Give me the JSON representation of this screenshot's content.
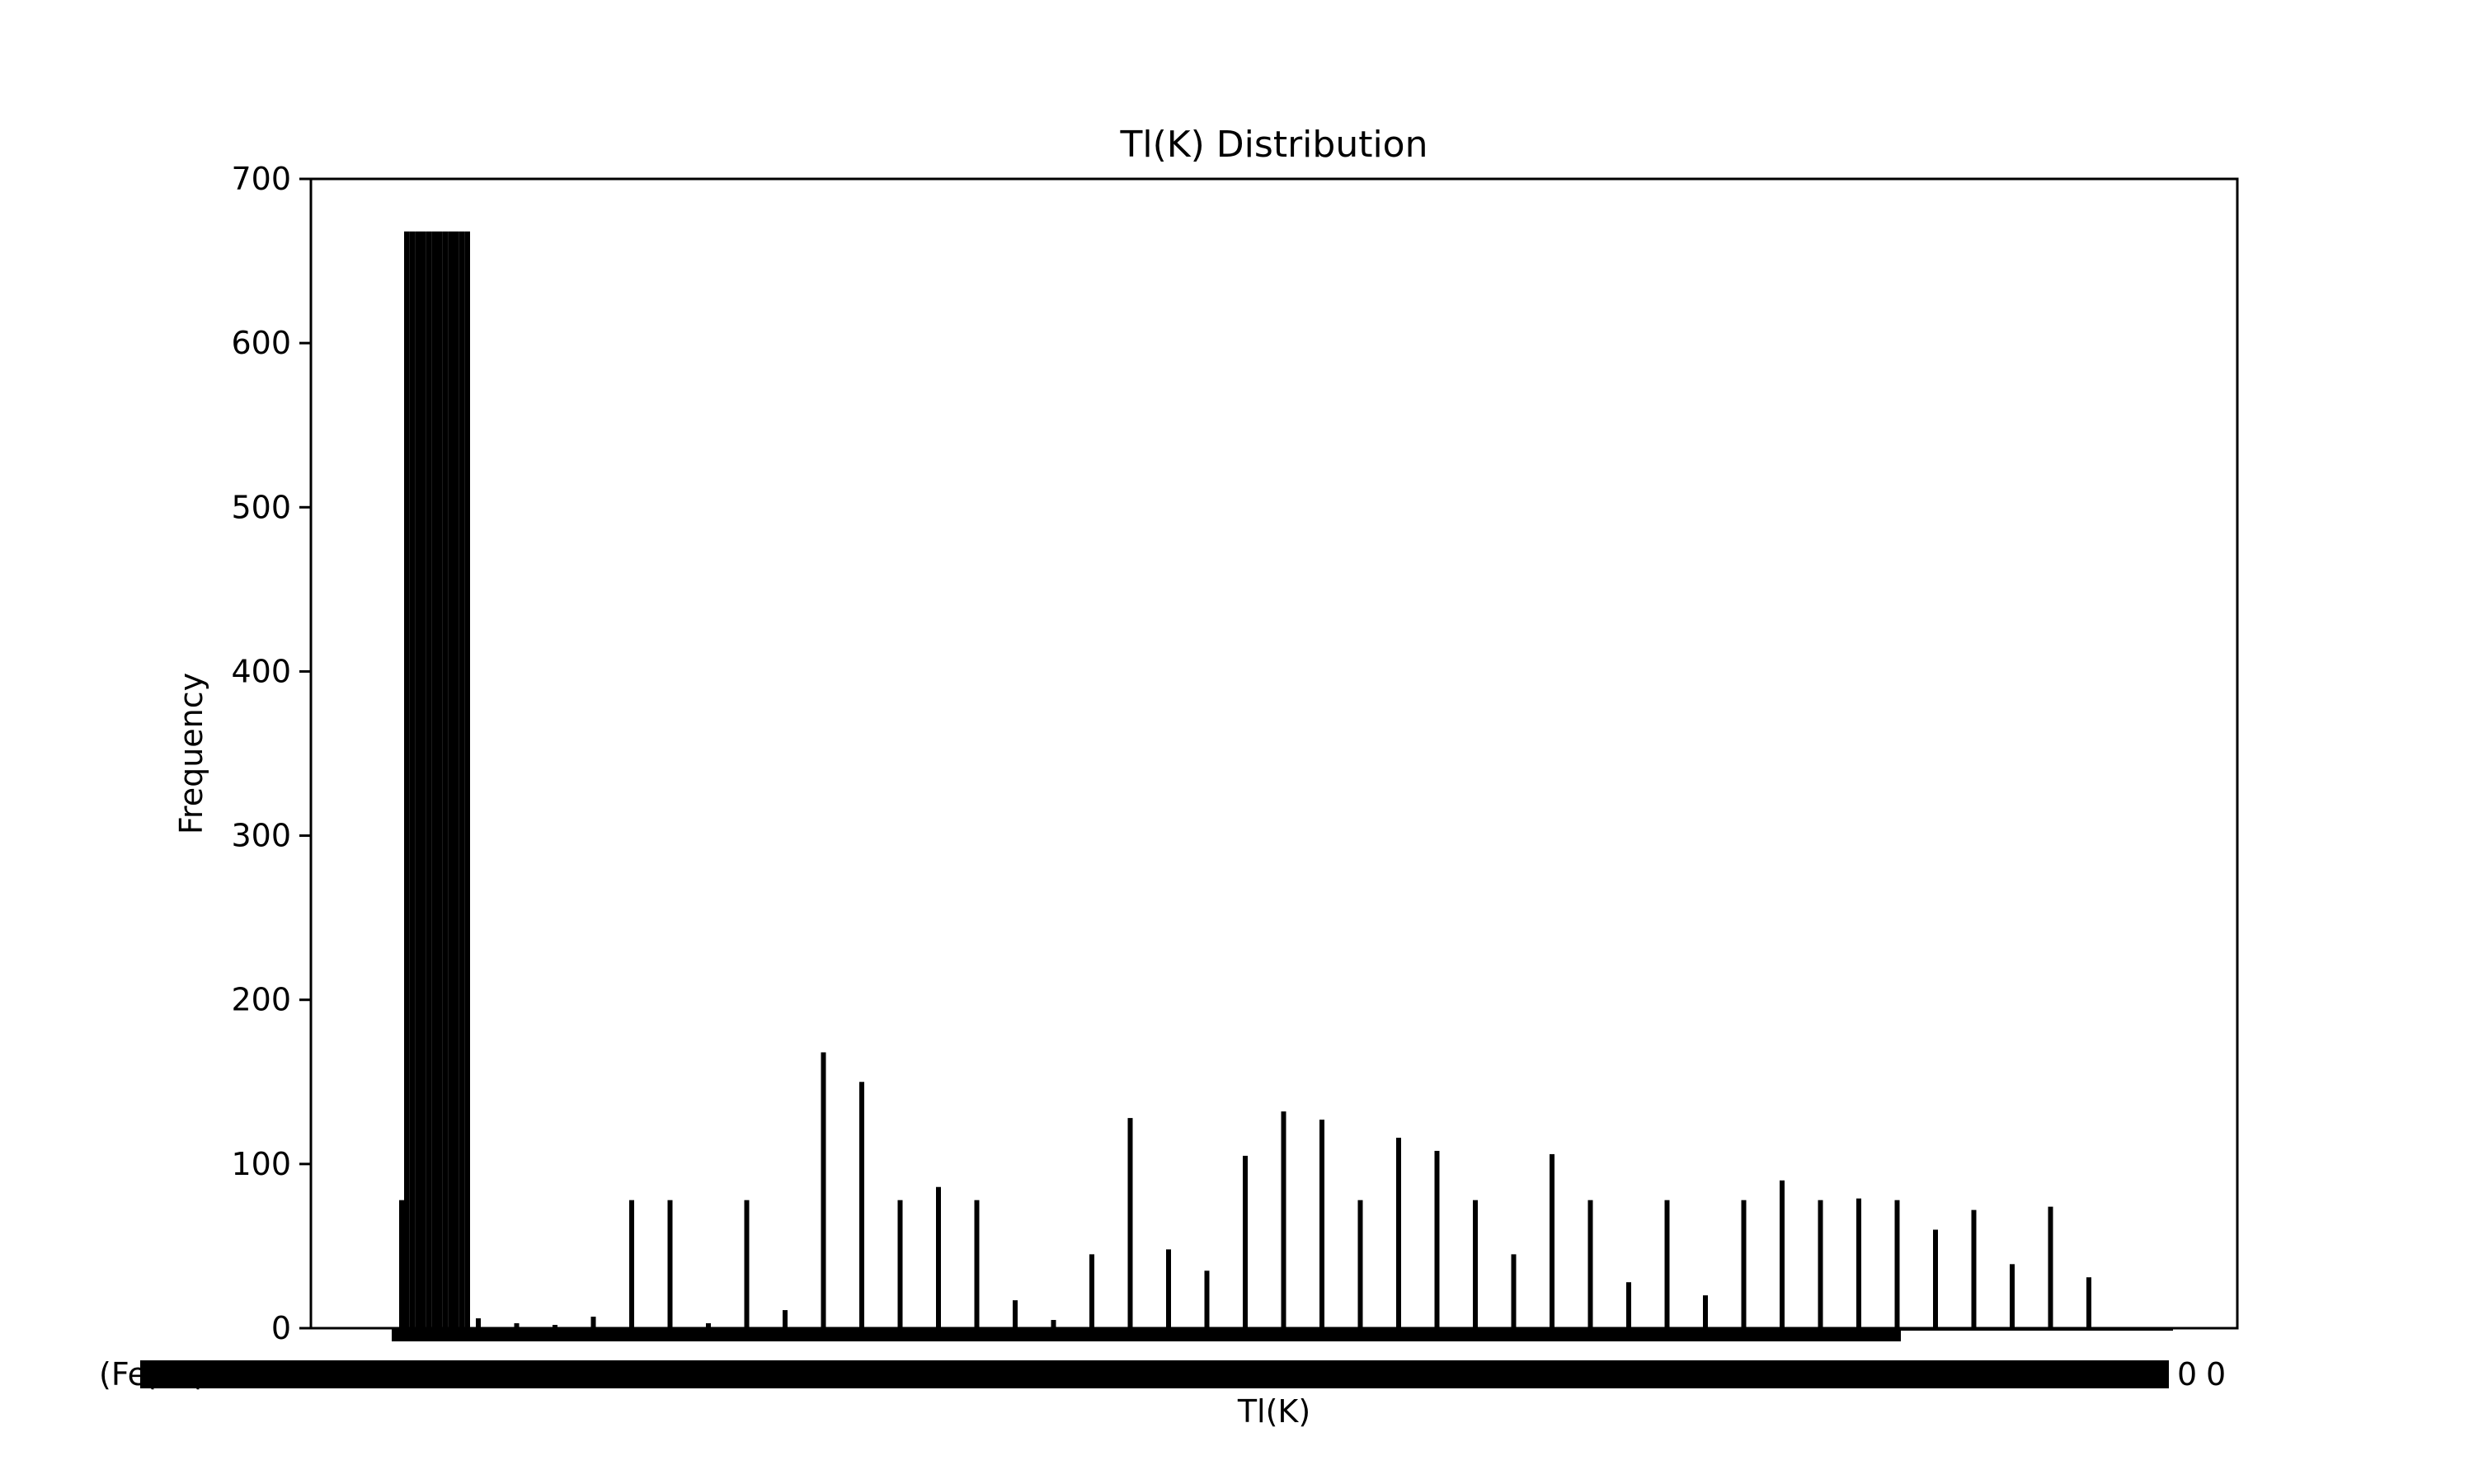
{
  "chart_data": {
    "type": "bar",
    "title": "Tl(K) Distribution",
    "xlabel": "Tl(K)",
    "ylabel": "Frequency",
    "ylim": [
      0,
      700
    ],
    "yticks": [
      0,
      100,
      200,
      300,
      400,
      500,
      600,
      700
    ],
    "grid": false,
    "legend": "none",
    "bar_color": "#000000",
    "values": [
      78,
      668,
      668,
      668,
      668,
      668,
      668,
      668,
      668,
      668,
      668,
      668,
      668,
      78,
      6,
      3,
      2,
      7,
      78,
      78,
      3,
      78,
      11,
      168,
      150,
      78,
      86,
      78,
      17,
      5,
      45,
      128,
      48,
      35,
      105,
      132,
      127,
      78,
      116,
      108,
      78,
      45,
      106,
      78,
      28,
      78,
      20,
      78,
      90,
      78,
      79,
      78,
      60,
      72,
      39,
      74,
      31
    ],
    "x_tick_labels": [
      "(Fe",
      "(F",
      "(Fe",
      "0",
      "0",
      "0"
    ]
  }
}
